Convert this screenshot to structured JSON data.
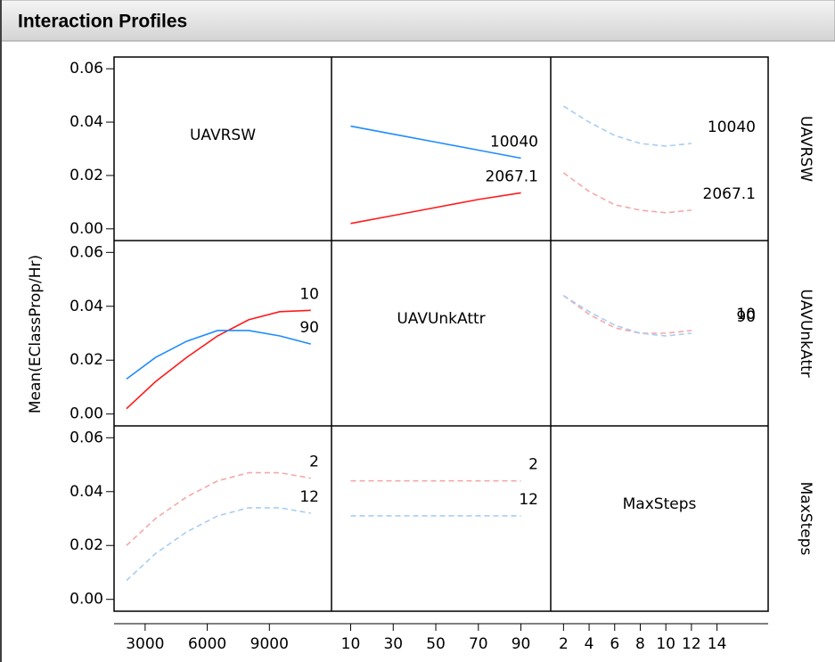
{
  "chart_data": {
    "type": "profile-matrix",
    "title": "Interaction Profiles",
    "ylabel": "Mean(EClassProp/Hr)",
    "factors": [
      "UAVRSW",
      "UAVUnkAttr",
      "MaxSteps"
    ],
    "ylim": [
      -0.0044,
      0.0644
    ],
    "yticks": [
      {
        "value": 0,
        "label": "0.00"
      },
      {
        "value": 0.02,
        "label": "0.02"
      },
      {
        "value": 0.04,
        "label": "0.04"
      },
      {
        "value": 0.06,
        "label": "0.06"
      }
    ],
    "columns": [
      {
        "xlim": [
          1500,
          12000
        ],
        "xticks": [
          3000,
          6000,
          9000
        ]
      },
      {
        "xlim": [
          1,
          104
        ],
        "xticks": [
          10,
          30,
          50,
          70,
          90
        ]
      },
      {
        "xlim": [
          1,
          18
        ],
        "xticks": [
          2,
          4,
          6,
          8,
          10,
          12,
          14
        ]
      }
    ],
    "panels": [
      [
        null,
        {
          "type": "line",
          "x": [
            10,
            30,
            50,
            70,
            90
          ],
          "series": [
            {
              "name": "10040",
              "color": "#1e8cff",
              "style": "solid",
              "values": [
                0.0385,
                0.0355,
                0.0325,
                0.0295,
                0.0265
              ]
            },
            {
              "name": "2067.1",
              "color": "#ff1a1a",
              "style": "solid",
              "values": [
                0.002,
                0.005,
                0.008,
                0.011,
                0.0135
              ]
            }
          ]
        },
        {
          "type": "line",
          "x": [
            2,
            4,
            6,
            8,
            10,
            12
          ],
          "series": [
            {
              "name": "10040",
              "color": "#a8cdf2",
              "style": "dashed",
              "values": [
                0.046,
                0.04,
                0.035,
                0.032,
                0.031,
                0.032
              ]
            },
            {
              "name": "2067.1",
              "color": "#f5a8a8",
              "style": "dashed",
              "values": [
                0.021,
                0.014,
                0.009,
                0.007,
                0.006,
                0.007
              ]
            }
          ]
        }
      ],
      [
        {
          "type": "line",
          "x": [
            2100,
            3500,
            5000,
            6500,
            8000,
            9500,
            11000
          ],
          "series": [
            {
              "name": "10",
              "color": "#ff1a1a",
              "style": "solid",
              "values": [
                0.002,
                0.012,
                0.021,
                0.029,
                0.035,
                0.038,
                0.0385
              ]
            },
            {
              "name": "90",
              "color": "#1e8cff",
              "style": "solid",
              "values": [
                0.013,
                0.021,
                0.027,
                0.031,
                0.031,
                0.029,
                0.026
              ]
            }
          ]
        },
        null,
        {
          "type": "line",
          "x": [
            2,
            4,
            6,
            8,
            10,
            12
          ],
          "series": [
            {
              "name": "10",
              "color": "#f5a8a8",
              "style": "dashed",
              "values": [
                0.044,
                0.037,
                0.032,
                0.03,
                0.03,
                0.031
              ]
            },
            {
              "name": "90",
              "color": "#a8cdf2",
              "style": "dashed",
              "values": [
                0.044,
                0.038,
                0.033,
                0.03,
                0.029,
                0.03
              ]
            }
          ]
        }
      ],
      [
        {
          "type": "line",
          "x": [
            2100,
            3500,
            5000,
            6500,
            8000,
            9500,
            11000
          ],
          "series": [
            {
              "name": "2",
              "color": "#f5a8a8",
              "style": "dashed",
              "values": [
                0.02,
                0.03,
                0.038,
                0.044,
                0.047,
                0.047,
                0.045
              ]
            },
            {
              "name": "12",
              "color": "#a8cdf2",
              "style": "dashed",
              "values": [
                0.007,
                0.017,
                0.025,
                0.031,
                0.034,
                0.034,
                0.032
              ]
            }
          ]
        },
        {
          "type": "line",
          "x": [
            10,
            30,
            50,
            70,
            90
          ],
          "series": [
            {
              "name": "2",
              "color": "#f5a8a8",
              "style": "dashed",
              "values": [
                0.044,
                0.044,
                0.044,
                0.044,
                0.044
              ]
            },
            {
              "name": "12",
              "color": "#a8cdf2",
              "style": "dashed",
              "values": [
                0.031,
                0.031,
                0.031,
                0.031,
                0.031
              ]
            }
          ]
        },
        null
      ]
    ]
  }
}
